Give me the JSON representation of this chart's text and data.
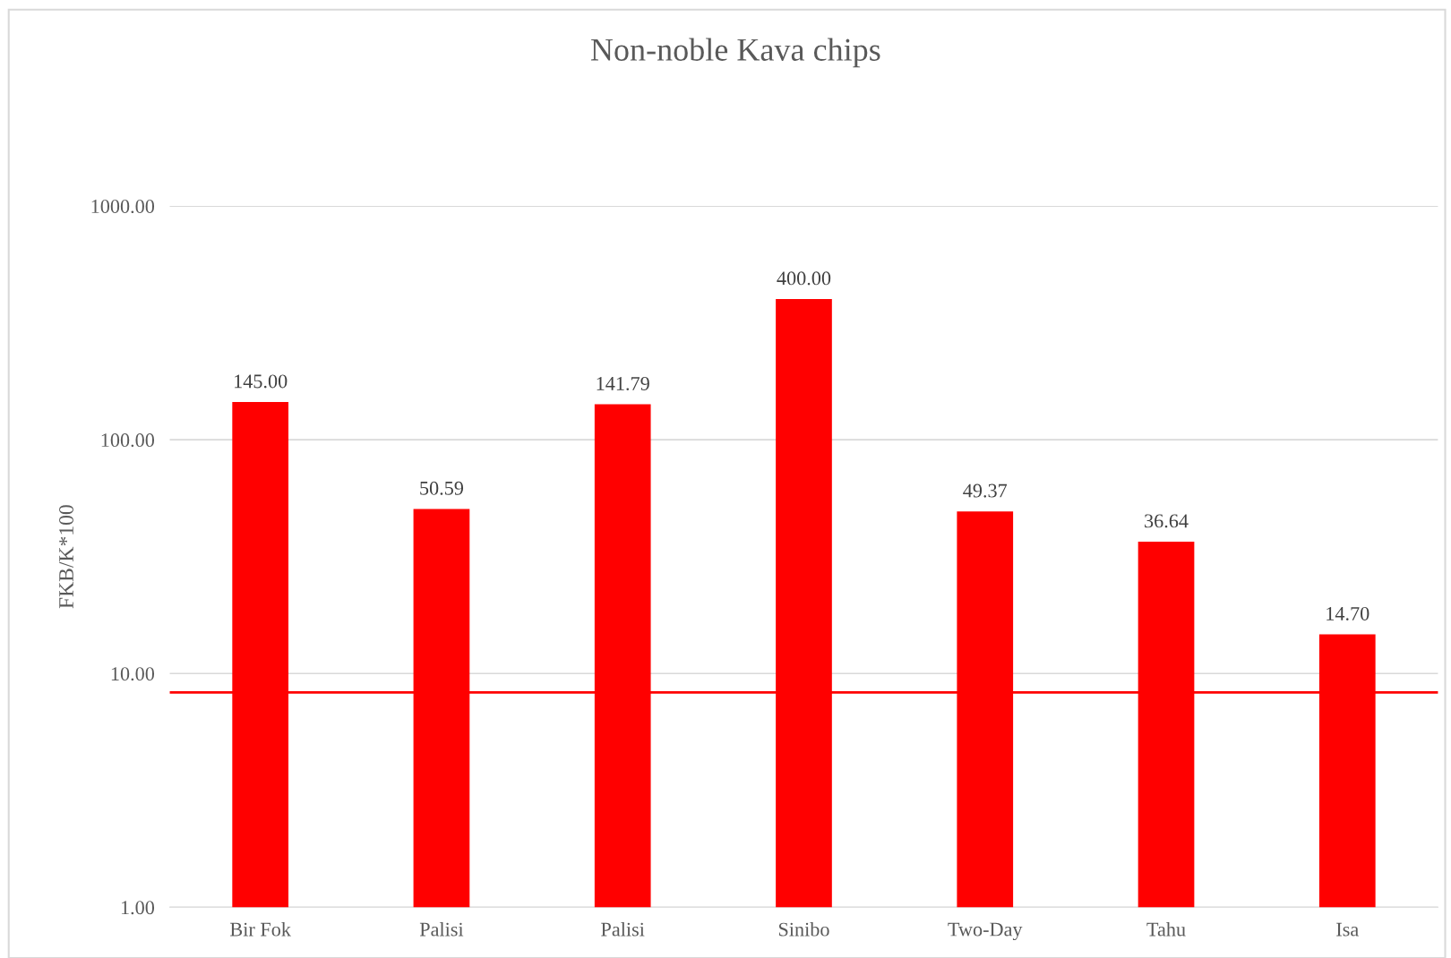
{
  "chart_data": {
    "type": "bar",
    "title": "Non-noble Kava chips",
    "ylabel": "FKB/K*100",
    "categories": [
      "Bir Fok",
      "Palisi",
      "Palisi",
      "Sinibo",
      "Two-Day",
      "Tahu",
      "Isa"
    ],
    "values": [
      145.0,
      50.59,
      141.79,
      400.0,
      49.37,
      36.64,
      14.7
    ],
    "value_labels": [
      "145.00",
      "50.59",
      "141.79",
      "400.00",
      "49.37",
      "36.64",
      "14.70"
    ],
    "color": "#ff0000",
    "log": true,
    "ylim": [
      1,
      1000
    ],
    "yticks": [
      {
        "value": 1,
        "label": "1.00"
      },
      {
        "value": 10,
        "label": "10.00"
      },
      {
        "value": 100,
        "label": "100.00"
      },
      {
        "value": 1000,
        "label": "1000.00"
      }
    ],
    "grid": "y",
    "ref_lines": [
      {
        "axis": "y",
        "value": 8.3,
        "label": null,
        "color": "#ff0000"
      }
    ]
  }
}
